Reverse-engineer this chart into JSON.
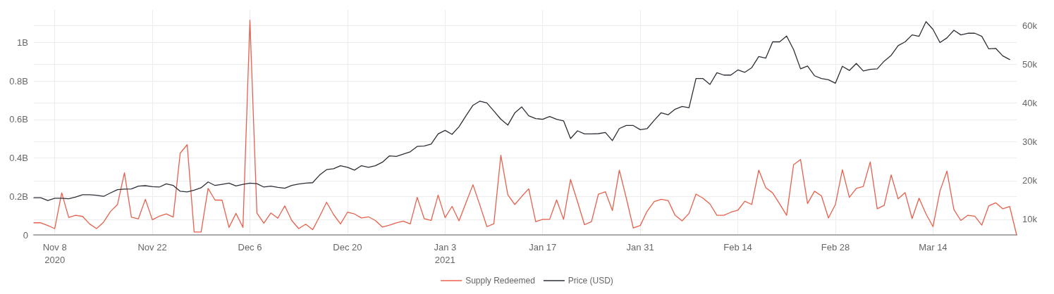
{
  "chart_data": {
    "type": "line",
    "marker": "none",
    "line_style": "solid",
    "grid": true,
    "legend": "bottom",
    "xlim": [
      "2020-11-05",
      "2021-03-26"
    ],
    "xticks": [
      {
        "value": "2020-11-08",
        "label": "Nov 8\n2020"
      },
      {
        "value": "2020-11-22",
        "label": "Nov 22"
      },
      {
        "value": "2020-12-06",
        "label": "Dec 6"
      },
      {
        "value": "2020-12-20",
        "label": "Dec 20"
      },
      {
        "value": "2021-01-03",
        "label": "Jan 3\n2021"
      },
      {
        "value": "2021-01-17",
        "label": "Jan 17"
      },
      {
        "value": "2021-01-31",
        "label": "Jan 31"
      },
      {
        "value": "2021-02-14",
        "label": "Feb 14"
      },
      {
        "value": "2021-02-28",
        "label": "Feb 28"
      },
      {
        "value": "2021-03-14",
        "label": "Mar 14"
      }
    ],
    "ylim": [
      0,
      1170000000
    ],
    "yticks": [
      {
        "value": 0,
        "label": "0"
      },
      {
        "value": 200000000,
        "label": "0.2B"
      },
      {
        "value": 400000000,
        "label": "0.4B"
      },
      {
        "value": 600000000,
        "label": "0.6B"
      },
      {
        "value": 800000000,
        "label": "0.8B"
      },
      {
        "value": 1000000000,
        "label": "1B"
      }
    ],
    "y2lim": [
      6000,
      64000
    ],
    "y2ticks": [
      {
        "value": 10000,
        "label": "10k"
      },
      {
        "value": 20000,
        "label": "20k"
      },
      {
        "value": 30000,
        "label": "30k"
      },
      {
        "value": 40000,
        "label": "40k"
      },
      {
        "value": 50000,
        "label": "50k"
      },
      {
        "value": 60000,
        "label": "60k"
      }
    ],
    "x": [
      "2020-11-05",
      "2020-11-06",
      "2020-11-07",
      "2020-11-08",
      "2020-11-09",
      "2020-11-10",
      "2020-11-11",
      "2020-11-12",
      "2020-11-13",
      "2020-11-14",
      "2020-11-15",
      "2020-11-16",
      "2020-11-17",
      "2020-11-18",
      "2020-11-19",
      "2020-11-20",
      "2020-11-21",
      "2020-11-22",
      "2020-11-23",
      "2020-11-24",
      "2020-11-25",
      "2020-11-26",
      "2020-11-27",
      "2020-11-28",
      "2020-11-29",
      "2020-11-30",
      "2020-12-01",
      "2020-12-02",
      "2020-12-03",
      "2020-12-04",
      "2020-12-05",
      "2020-12-06",
      "2020-12-07",
      "2020-12-08",
      "2020-12-09",
      "2020-12-10",
      "2020-12-11",
      "2020-12-12",
      "2020-12-13",
      "2020-12-14",
      "2020-12-15",
      "2020-12-16",
      "2020-12-17",
      "2020-12-18",
      "2020-12-19",
      "2020-12-20",
      "2020-12-21",
      "2020-12-22",
      "2020-12-23",
      "2020-12-24",
      "2020-12-25",
      "2020-12-26",
      "2020-12-27",
      "2020-12-28",
      "2020-12-29",
      "2020-12-30",
      "2020-12-31",
      "2021-01-01",
      "2021-01-02",
      "2021-01-03",
      "2021-01-04",
      "2021-01-05",
      "2021-01-06",
      "2021-01-07",
      "2021-01-08",
      "2021-01-09",
      "2021-01-10",
      "2021-01-11",
      "2021-01-12",
      "2021-01-13",
      "2021-01-14",
      "2021-01-15",
      "2021-01-16",
      "2021-01-17",
      "2021-01-18",
      "2021-01-19",
      "2021-01-20",
      "2021-01-21",
      "2021-01-22",
      "2021-01-23",
      "2021-01-24",
      "2021-01-25",
      "2021-01-26",
      "2021-01-27",
      "2021-01-28",
      "2021-01-29",
      "2021-01-30",
      "2021-01-31",
      "2021-02-01",
      "2021-02-02",
      "2021-02-03",
      "2021-02-04",
      "2021-02-05",
      "2021-02-06",
      "2021-02-07",
      "2021-02-08",
      "2021-02-09",
      "2021-02-10",
      "2021-02-11",
      "2021-02-12",
      "2021-02-13",
      "2021-02-14",
      "2021-02-15",
      "2021-02-16",
      "2021-02-17",
      "2021-02-18",
      "2021-02-19",
      "2021-02-20",
      "2021-02-21",
      "2021-02-22",
      "2021-02-23",
      "2021-02-24",
      "2021-02-25",
      "2021-02-26",
      "2021-02-27",
      "2021-02-28",
      "2021-03-01",
      "2021-03-02",
      "2021-03-03",
      "2021-03-04",
      "2021-03-05",
      "2021-03-06",
      "2021-03-07",
      "2021-03-08",
      "2021-03-09",
      "2021-03-10",
      "2021-03-11",
      "2021-03-12",
      "2021-03-13",
      "2021-03-14",
      "2021-03-15",
      "2021-03-16",
      "2021-03-17",
      "2021-03-18",
      "2021-03-19",
      "2021-03-20",
      "2021-03-21",
      "2021-03-22",
      "2021-03-23",
      "2021-03-24",
      "2021-03-25",
      "2021-03-26"
    ],
    "series": [
      {
        "name": "Supply Redeemed",
        "color": "#e8604c",
        "values": [
          63000000,
          63000000,
          49000000,
          33000000,
          219000000,
          91000000,
          102000000,
          96000000,
          57000000,
          33000000,
          66000000,
          122000000,
          158000000,
          323000000,
          92000000,
          84000000,
          185000000,
          79000000,
          97000000,
          109000000,
          93000000,
          425000000,
          469000000,
          15000000,
          15000000,
          242000000,
          181000000,
          181000000,
          39000000,
          112000000,
          39000000,
          1116000000,
          114000000,
          61000000,
          114000000,
          87000000,
          151000000,
          75000000,
          33000000,
          56000000,
          27000000,
          96000000,
          170000000,
          106000000,
          57000000,
          118000000,
          109000000,
          88000000,
          94000000,
          75000000,
          41000000,
          51000000,
          63000000,
          72000000,
          57000000,
          195000000,
          85000000,
          75000000,
          207000000,
          90000000,
          148000000,
          73000000,
          167000000,
          261000000,
          154000000,
          43000000,
          58000000,
          414000000,
          209000000,
          158000000,
          200000000,
          240000000,
          69000000,
          81000000,
          81000000,
          182000000,
          81000000,
          288000000,
          173000000,
          53000000,
          69000000,
          212000000,
          224000000,
          127000000,
          337000000,
          191000000,
          36000000,
          49000000,
          124000000,
          173000000,
          185000000,
          179000000,
          102000000,
          73000000,
          112000000,
          212000000,
          191000000,
          161000000,
          102000000,
          102000000,
          118000000,
          128000000,
          175000000,
          158000000,
          337000000,
          246000000,
          218000000,
          161000000,
          102000000,
          365000000,
          392000000,
          163000000,
          227000000,
          203000000,
          88000000,
          158000000,
          339000000,
          195000000,
          242000000,
          252000000,
          380000000,
          136000000,
          154000000,
          312000000,
          187000000,
          220000000,
          85000000,
          191000000,
          109000000,
          43000000,
          228000000,
          332000000,
          131000000,
          75000000,
          102000000,
          97000000,
          51000000,
          151000000,
          167000000,
          136000000,
          148000000,
          0
        ]
      },
      {
        "name": "Price (USD)",
        "color": "#2b2f36",
        "axis": "y2",
        "values": [
          15570,
          15570,
          14850,
          15450,
          15450,
          15330,
          15750,
          16350,
          16350,
          16230,
          15930,
          16830,
          17670,
          17790,
          17850,
          18570,
          18690,
          18450,
          18330,
          19160,
          18740,
          17250,
          17070,
          17550,
          18150,
          19640,
          18740,
          19040,
          19340,
          18630,
          19040,
          19340,
          19220,
          18330,
          18570,
          18270,
          18030,
          18740,
          19100,
          19340,
          19460,
          21440,
          22820,
          23060,
          23840,
          23420,
          22700,
          23840,
          23420,
          23840,
          24730,
          26350,
          26230,
          26830,
          27430,
          28800,
          28920,
          29400,
          32040,
          32940,
          31920,
          33890,
          36710,
          39400,
          40480,
          40000,
          37910,
          35810,
          34310,
          37430,
          38980,
          36710,
          35990,
          35810,
          36530,
          35810,
          35390,
          30840,
          32820,
          32040,
          32040,
          32100,
          32400,
          30300,
          33410,
          34190,
          34190,
          33110,
          33410,
          35510,
          37490,
          36950,
          38380,
          39100,
          38800,
          46290,
          46290,
          44790,
          47790,
          47190,
          47190,
          48510,
          47910,
          49100,
          51980,
          51560,
          55750,
          55750,
          57250,
          53770,
          48800,
          49520,
          47010,
          46290,
          45990,
          45090,
          49460,
          48380,
          50180,
          48260,
          48680,
          48800,
          50780,
          52280,
          54790,
          55750,
          57550,
          57190,
          60960,
          58980,
          55570,
          56770,
          58740,
          57550,
          57970,
          57970,
          57190,
          53950,
          54070,
          52160,
          51200,
          null
        ]
      }
    ]
  }
}
